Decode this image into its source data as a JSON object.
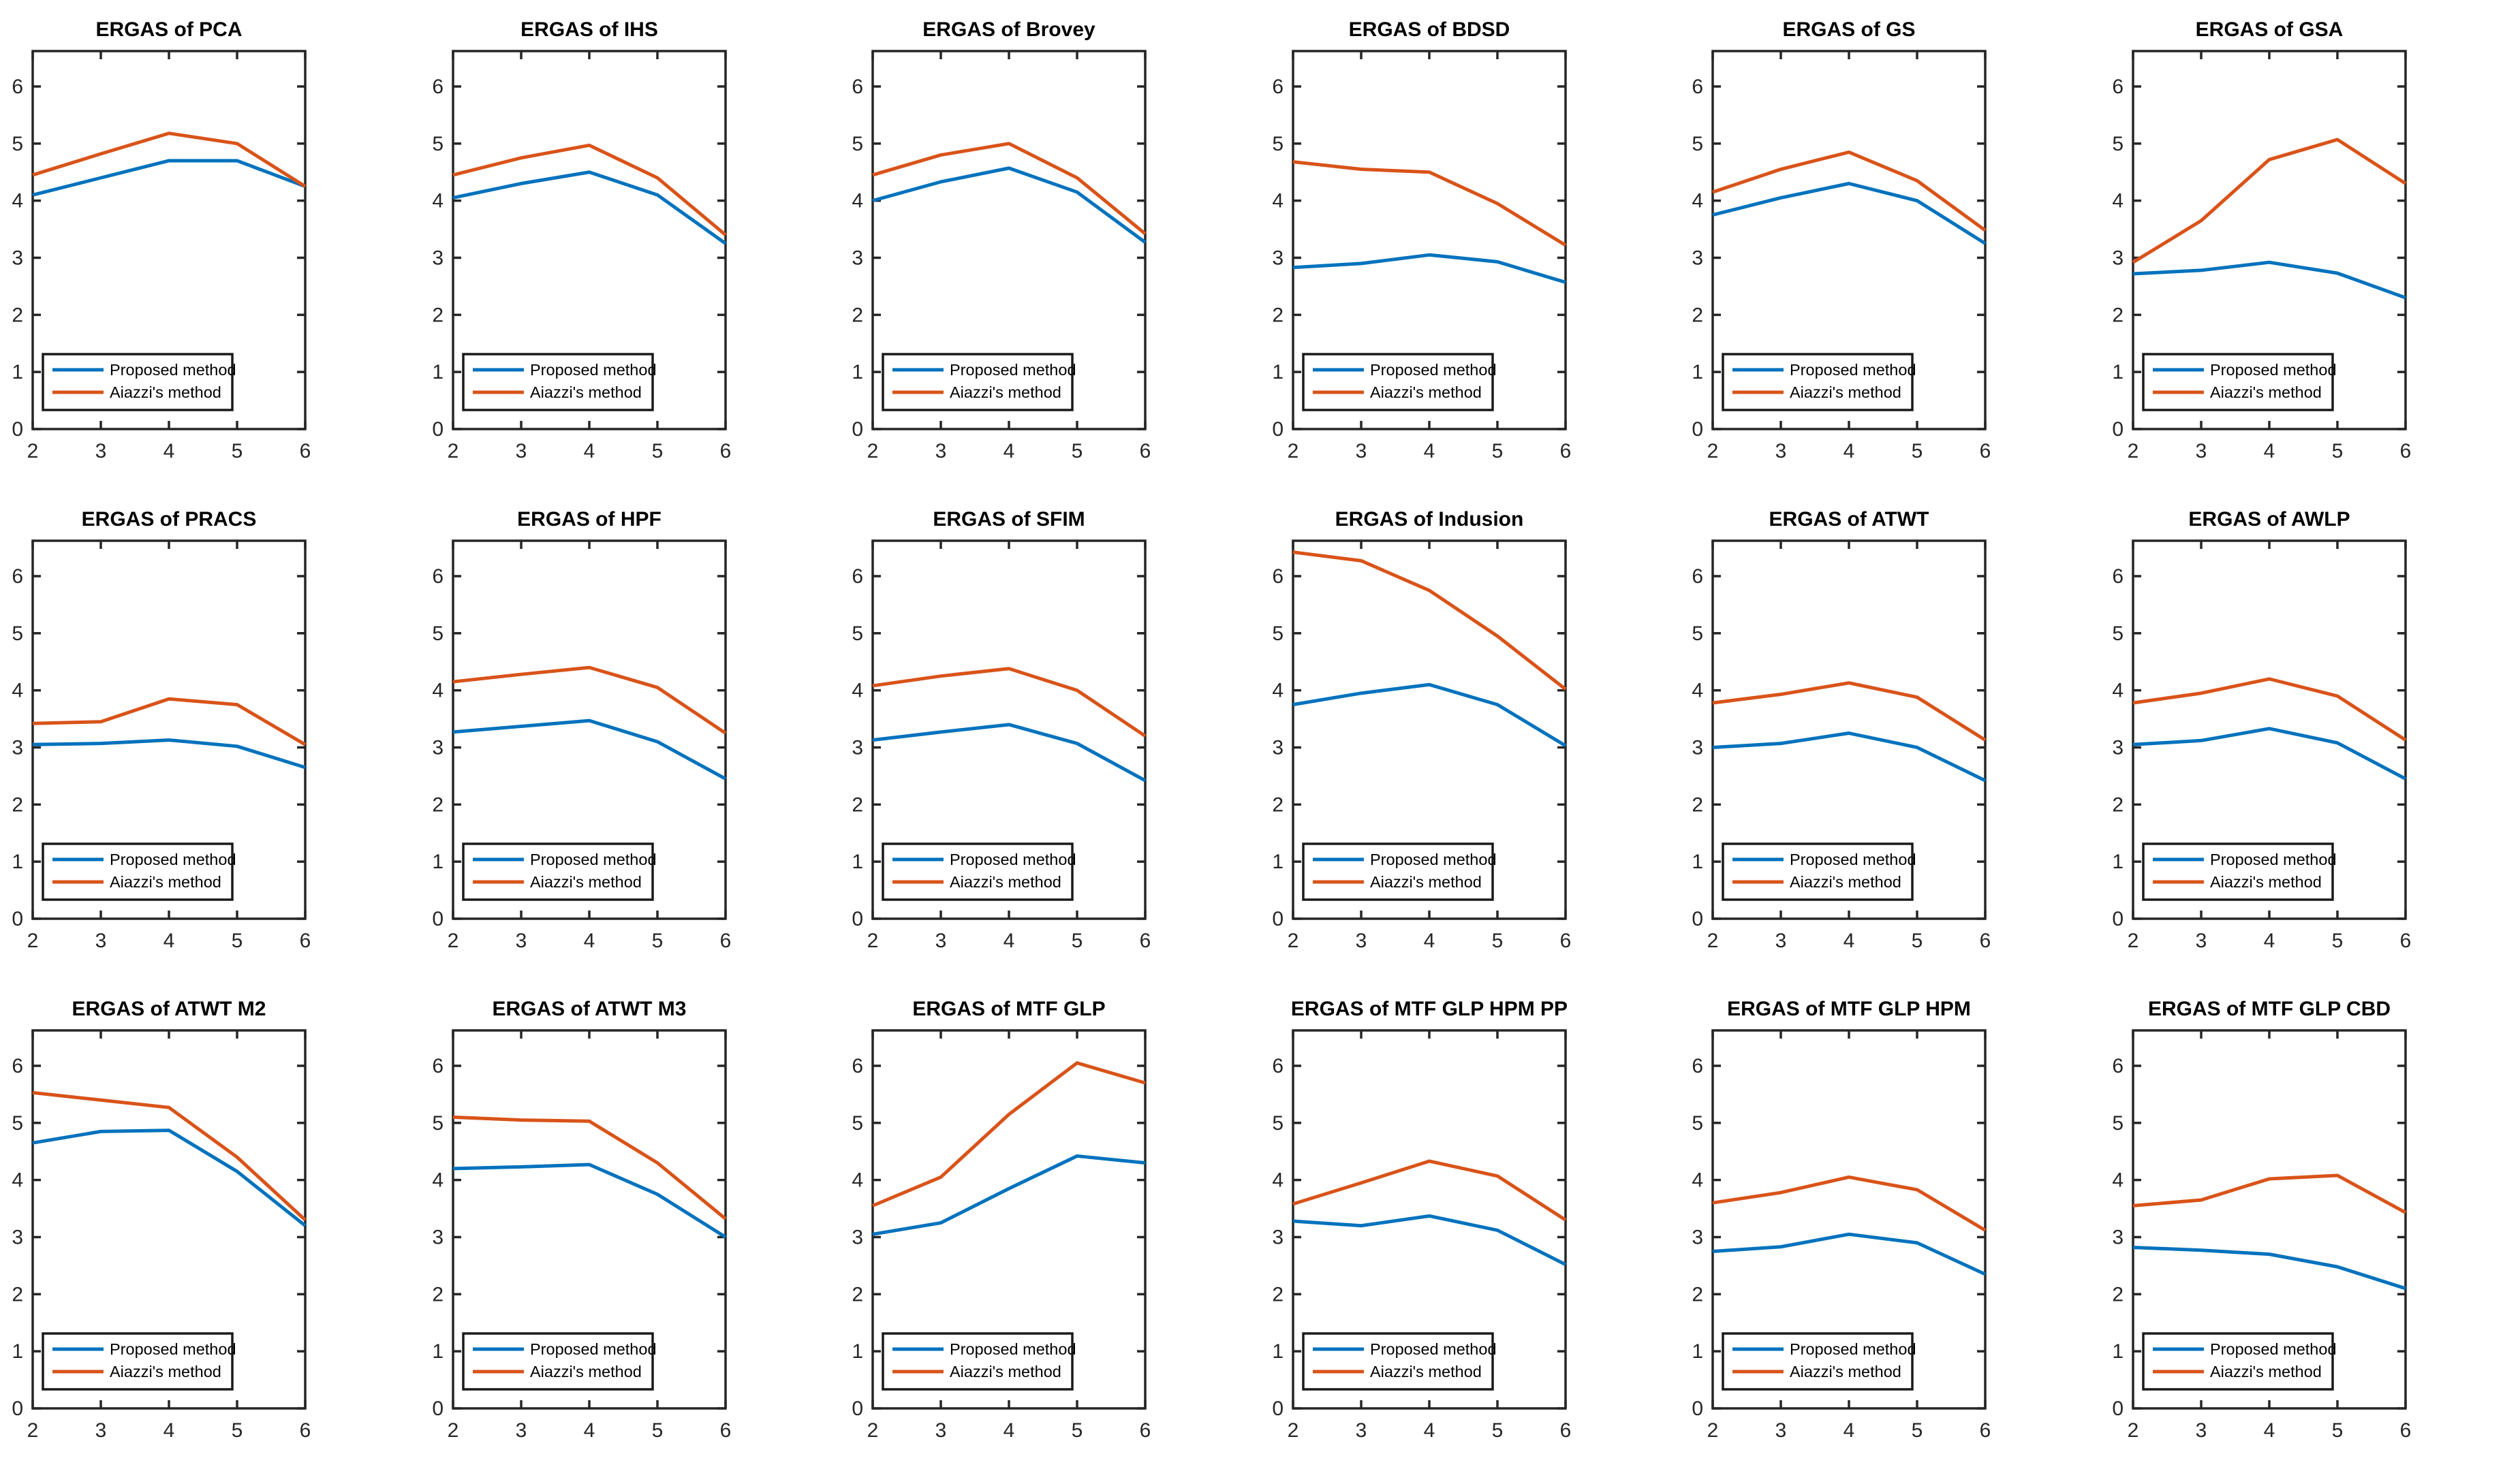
{
  "figure": {
    "background": "#ffffff",
    "axis_color": "#262626",
    "title_color": "#000000"
  },
  "chart_data": {
    "type": "line",
    "x_label": "",
    "y_label": "",
    "x": [
      2,
      3,
      4,
      5,
      6
    ],
    "xlim": [
      2,
      6
    ],
    "ylim": [
      0,
      6.62
    ],
    "xticks": [
      "2",
      "3",
      "4",
      "5",
      "6"
    ],
    "yticks": [
      "0",
      "1",
      "2",
      "3",
      "4",
      "5",
      "6"
    ],
    "grid": false,
    "legend_position": "lower-left",
    "legend": [
      {
        "name": "Proposed method",
        "color": "#0072BD"
      },
      {
        "name": "Aiazzi's method",
        "color": "#D95319"
      }
    ],
    "subplots": [
      {
        "title": "ERGAS of PCA",
        "series": [
          {
            "name": "Proposed method",
            "values": [
              4.1,
              4.4,
              4.7,
              4.7,
              4.25
            ]
          },
          {
            "name": "Aiazzi's method",
            "values": [
              4.45,
              4.82,
              5.18,
              5.0,
              4.25
            ]
          }
        ]
      },
      {
        "title": "ERGAS of IHS",
        "series": [
          {
            "name": "Proposed method",
            "values": [
              4.05,
              4.3,
              4.5,
              4.1,
              3.25
            ]
          },
          {
            "name": "Aiazzi's method",
            "values": [
              4.45,
              4.75,
              4.97,
              4.4,
              3.4
            ]
          }
        ]
      },
      {
        "title": "ERGAS of Brovey",
        "series": [
          {
            "name": "Proposed method",
            "values": [
              4.0,
              4.33,
              4.57,
              4.15,
              3.27
            ]
          },
          {
            "name": "Aiazzi's method",
            "values": [
              4.45,
              4.8,
              5.0,
              4.4,
              3.42
            ]
          }
        ]
      },
      {
        "title": "ERGAS of BDSD",
        "series": [
          {
            "name": "Proposed method",
            "values": [
              2.83,
              2.9,
              3.05,
              2.93,
              2.57
            ]
          },
          {
            "name": "Aiazzi's method",
            "values": [
              4.68,
              4.55,
              4.5,
              3.95,
              3.22
            ]
          }
        ]
      },
      {
        "title": "ERGAS of GS",
        "series": [
          {
            "name": "Proposed method",
            "values": [
              3.75,
              4.05,
              4.3,
              4.0,
              3.25
            ]
          },
          {
            "name": "Aiazzi's method",
            "values": [
              4.15,
              4.55,
              4.85,
              4.35,
              3.48
            ]
          }
        ]
      },
      {
        "title": "ERGAS of GSA",
        "series": [
          {
            "name": "Proposed method",
            "values": [
              2.72,
              2.78,
              2.92,
              2.73,
              2.3
            ]
          },
          {
            "name": "Aiazzi's method",
            "values": [
              2.92,
              3.65,
              4.72,
              5.07,
              4.3
            ]
          }
        ]
      },
      {
        "title": "ERGAS of PRACS",
        "series": [
          {
            "name": "Proposed method",
            "values": [
              3.05,
              3.07,
              3.13,
              3.02,
              2.65
            ]
          },
          {
            "name": "Aiazzi's method",
            "values": [
              3.42,
              3.45,
              3.85,
              3.75,
              3.05
            ]
          }
        ]
      },
      {
        "title": "ERGAS of HPF",
        "series": [
          {
            "name": "Proposed method",
            "values": [
              3.27,
              3.37,
              3.47,
              3.1,
              2.45
            ]
          },
          {
            "name": "Aiazzi's method",
            "values": [
              4.15,
              4.28,
              4.4,
              4.05,
              3.25
            ]
          }
        ]
      },
      {
        "title": "ERGAS of SFIM",
        "series": [
          {
            "name": "Proposed method",
            "values": [
              3.13,
              3.27,
              3.4,
              3.07,
              2.42
            ]
          },
          {
            "name": "Aiazzi's method",
            "values": [
              4.08,
              4.25,
              4.38,
              4.0,
              3.2
            ]
          }
        ]
      },
      {
        "title": "ERGAS of Indusion",
        "series": [
          {
            "name": "Proposed method",
            "values": [
              3.75,
              3.95,
              4.1,
              3.75,
              3.03
            ]
          },
          {
            "name": "Aiazzi's method",
            "values": [
              6.42,
              6.27,
              5.75,
              4.95,
              4.02
            ]
          }
        ]
      },
      {
        "title": "ERGAS of ATWT",
        "series": [
          {
            "name": "Proposed method",
            "values": [
              3.0,
              3.07,
              3.25,
              3.0,
              2.42
            ]
          },
          {
            "name": "Aiazzi's method",
            "values": [
              3.78,
              3.93,
              4.13,
              3.88,
              3.13
            ]
          }
        ]
      },
      {
        "title": "ERGAS of AWLP",
        "series": [
          {
            "name": "Proposed method",
            "values": [
              3.05,
              3.12,
              3.33,
              3.08,
              2.45
            ]
          },
          {
            "name": "Aiazzi's method",
            "values": [
              3.78,
              3.95,
              4.2,
              3.9,
              3.13
            ]
          }
        ]
      },
      {
        "title": "ERGAS of ATWT M2",
        "series": [
          {
            "name": "Proposed method",
            "values": [
              4.65,
              4.85,
              4.87,
              4.15,
              3.2
            ]
          },
          {
            "name": "Aiazzi's method",
            "values": [
              5.53,
              5.4,
              5.27,
              4.4,
              3.3
            ]
          }
        ]
      },
      {
        "title": "ERGAS of ATWT M3",
        "series": [
          {
            "name": "Proposed method",
            "values": [
              4.2,
              4.23,
              4.27,
              3.75,
              3.0
            ]
          },
          {
            "name": "Aiazzi's method",
            "values": [
              5.1,
              5.05,
              5.03,
              4.3,
              3.32
            ]
          }
        ]
      },
      {
        "title": "ERGAS of MTF GLP",
        "series": [
          {
            "name": "Proposed method",
            "values": [
              3.05,
              3.25,
              3.85,
              4.42,
              4.3
            ]
          },
          {
            "name": "Aiazzi's method",
            "values": [
              3.55,
              4.05,
              5.15,
              6.05,
              5.7
            ]
          }
        ]
      },
      {
        "title": "ERGAS of MTF GLP HPM PP",
        "series": [
          {
            "name": "Proposed method",
            "values": [
              3.28,
              3.2,
              3.37,
              3.12,
              2.52
            ]
          },
          {
            "name": "Aiazzi's method",
            "values": [
              3.58,
              3.95,
              4.33,
              4.07,
              3.3
            ]
          }
        ]
      },
      {
        "title": "ERGAS of MTF GLP HPM",
        "series": [
          {
            "name": "Proposed method",
            "values": [
              2.75,
              2.83,
              3.05,
              2.9,
              2.35
            ]
          },
          {
            "name": "Aiazzi's method",
            "values": [
              3.6,
              3.78,
              4.05,
              3.83,
              3.12
            ]
          }
        ]
      },
      {
        "title": "ERGAS of MTF GLP CBD",
        "series": [
          {
            "name": "Proposed method",
            "values": [
              2.82,
              2.77,
              2.7,
              2.48,
              2.1
            ]
          },
          {
            "name": "Aiazzi's method",
            "values": [
              3.55,
              3.65,
              4.02,
              4.08,
              3.43
            ]
          }
        ]
      }
    ]
  }
}
